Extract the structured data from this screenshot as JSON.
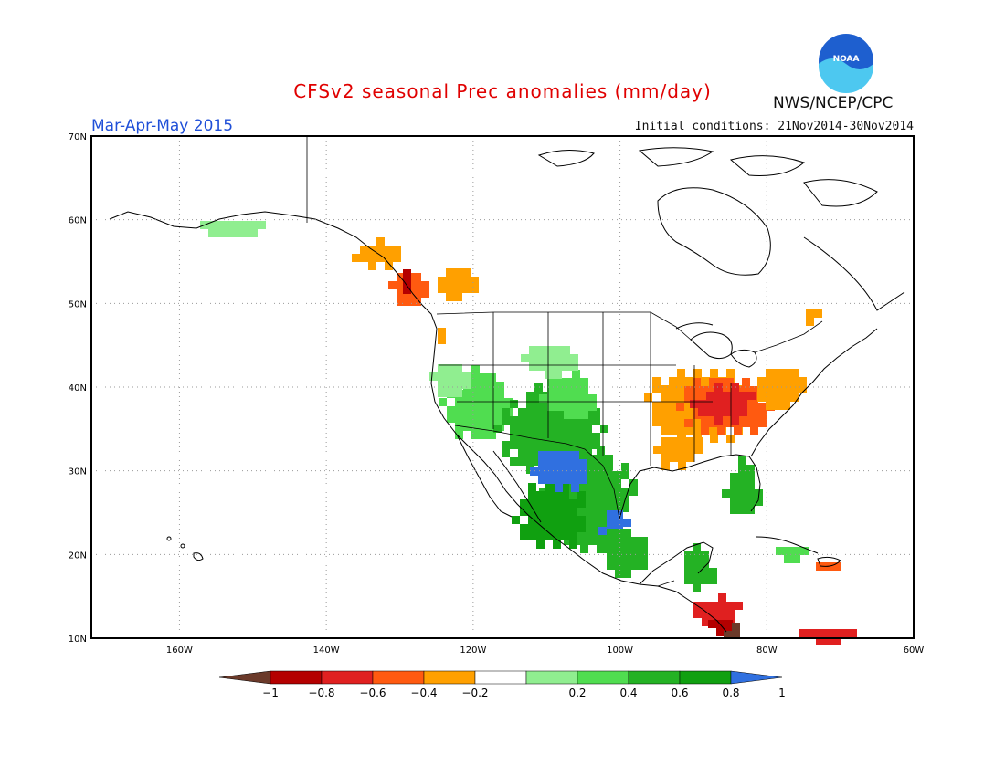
{
  "title": "CFSv2 seasonal Prec anomalies (mm/day)",
  "period_label": "Mar-Apr-May 2015",
  "initial_conditions": "Initial conditions: 21Nov2014-30Nov2014",
  "agency": "NWS/NCEP/CPC",
  "logo_text": "NOAA",
  "map": {
    "lon_range": [
      -172,
      -60
    ],
    "lat_range": [
      10,
      70
    ],
    "lat_ticks": [
      "10N",
      "20N",
      "30N",
      "40N",
      "50N",
      "60N",
      "70N"
    ],
    "lon_ticks": [
      "160W",
      "140W",
      "120W",
      "100W",
      "80W",
      "60W"
    ],
    "gridlines": "dotted"
  },
  "colorbar": {
    "labels": [
      "-1",
      "-0.8",
      "-0.6",
      "-0.4",
      "-0.2",
      "0.2",
      "0.4",
      "0.6",
      "0.8",
      "1"
    ],
    "colors": [
      "#6b3a2a",
      "#b40000",
      "#e02020",
      "#ff5a10",
      "#ffa000",
      "#ffffff",
      "#90ee90",
      "#50dd50",
      "#24b224",
      "#10a010",
      "#3070e0"
    ]
  }
}
